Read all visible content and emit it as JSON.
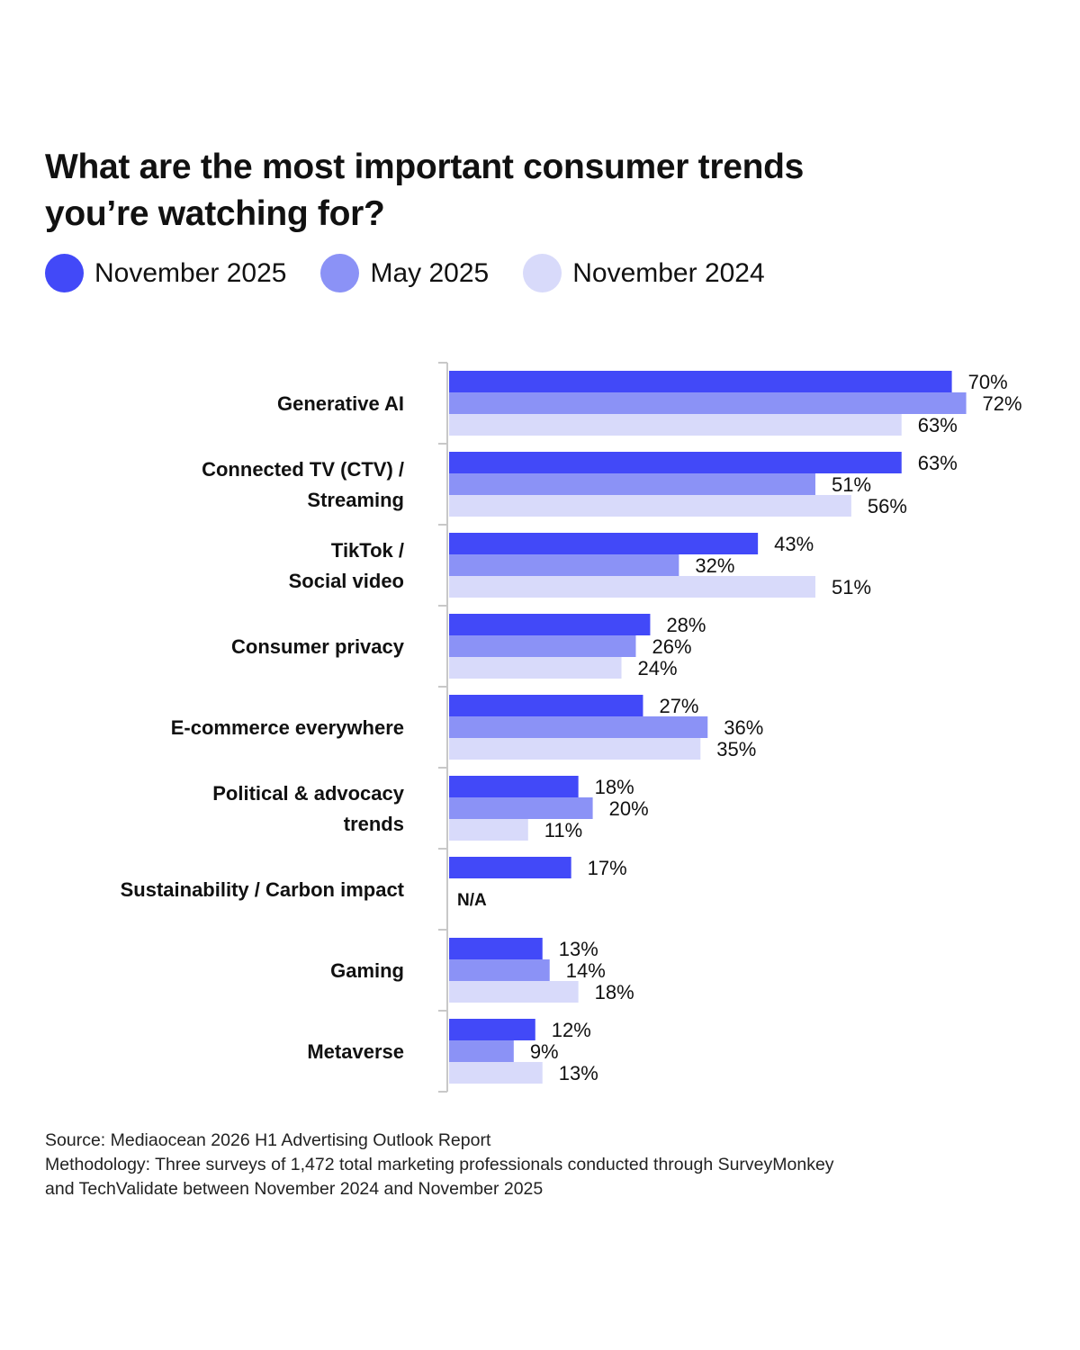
{
  "title": "What are the most important consumer trends you’re watching for?",
  "legend": [
    {
      "label": "November 2025",
      "color": "#4249F8"
    },
    {
      "label": "May 2025",
      "color": "#8B92F6"
    },
    {
      "label": "November 2024",
      "color": "#D8DAFA"
    }
  ],
  "chart_data": {
    "type": "bar",
    "orientation": "horizontal",
    "categories": [
      "Generative AI",
      "Connected TV (CTV) / Streaming",
      "TikTok / Social video",
      "Consumer privacy",
      "E-commerce everywhere",
      "Political & advocacy trends",
      "Sustainability / Carbon impact",
      "Gaming",
      "Metaverse"
    ],
    "category_lines": [
      [
        "Generative AI"
      ],
      [
        "Connected TV (CTV) /",
        "Streaming"
      ],
      [
        "TikTok /",
        "Social video"
      ],
      [
        "Consumer privacy"
      ],
      [
        "E-commerce everywhere"
      ],
      [
        "Political & advocacy",
        "trends"
      ],
      [
        "Sustainability / Carbon impact"
      ],
      [
        "Gaming"
      ],
      [
        "Metaverse"
      ]
    ],
    "series": [
      {
        "name": "November 2025",
        "color": "#4249F8",
        "values": [
          70,
          63,
          43,
          28,
          27,
          18,
          17,
          13,
          12
        ]
      },
      {
        "name": "May 2025",
        "color": "#8B92F6",
        "values": [
          72,
          51,
          32,
          26,
          36,
          20,
          null,
          14,
          9
        ]
      },
      {
        "name": "November 2024",
        "color": "#D8DAFA",
        "values": [
          63,
          56,
          51,
          24,
          35,
          11,
          null,
          18,
          13
        ]
      }
    ],
    "missing_label": "N/A",
    "value_suffix": "%",
    "xlim": [
      0,
      80
    ],
    "grid": false,
    "legend_position": "top-left"
  },
  "footer": {
    "source": "Source: Mediaocean 2026 H1 Advertising Outlook Report",
    "methodology_1": "Methodology: Three surveys of 1,472 total marketing professionals conducted through SurveyMonkey",
    "methodology_2": "and TechValidate between November 2024 and November 2025"
  }
}
